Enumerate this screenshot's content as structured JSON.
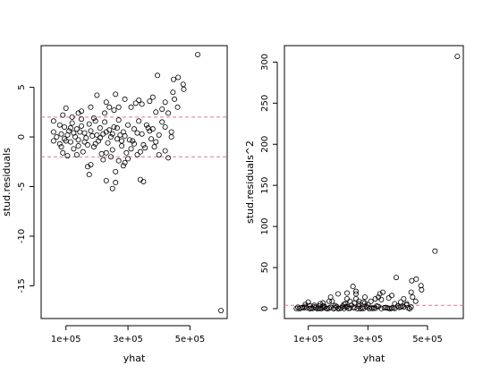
{
  "chart_data": [
    {
      "type": "scatter",
      "xlabel": "yhat",
      "ylabel": "stud.residuals",
      "xlim": [
        20000,
        620000
      ],
      "ylim": [
        -18.3,
        9.2
      ],
      "x_ticks": [
        100000,
        300000,
        500000
      ],
      "x_tick_labels": [
        "1e+05",
        "3e+05",
        "5e+05"
      ],
      "y_ticks": [
        5,
        0,
        -5,
        -10,
        -15
      ],
      "y_tick_labels": [
        "5",
        "0",
        "-5",
        "-10",
        "-15"
      ],
      "reference_lines": [
        {
          "y": 2,
          "style": "dashed",
          "color": "#e07a8a"
        },
        {
          "y": -2,
          "style": "dashed",
          "color": "#e07a8a"
        }
      ],
      "points": [
        [
          525000,
          8.3
        ],
        [
          600000,
          -17.5
        ],
        [
          478000,
          5.3
        ],
        [
          480000,
          4.8
        ],
        [
          462000,
          6.0
        ],
        [
          447000,
          5.8
        ],
        [
          395000,
          6.2
        ],
        [
          445000,
          4.5
        ],
        [
          450000,
          3.8
        ],
        [
          460000,
          3.0
        ],
        [
          420000,
          3.5
        ],
        [
          410000,
          2.8
        ],
        [
          430000,
          2.4
        ],
        [
          380000,
          4.0
        ],
        [
          390000,
          2.5
        ],
        [
          370000,
          3.6
        ],
        [
          345000,
          3.3
        ],
        [
          335000,
          3.7
        ],
        [
          325000,
          3.4
        ],
        [
          310000,
          3.0
        ],
        [
          290000,
          3.8
        ],
        [
          260000,
          4.3
        ],
        [
          270000,
          3.0
        ],
        [
          255000,
          2.7
        ],
        [
          240000,
          3.0
        ],
        [
          230000,
          3.5
        ],
        [
          225000,
          2.4
        ],
        [
          200000,
          4.2
        ],
        [
          180000,
          3.0
        ],
        [
          150000,
          2.6
        ],
        [
          140000,
          2.4
        ],
        [
          100000,
          2.9
        ],
        [
          90000,
          2.2
        ],
        [
          120000,
          2.0
        ],
        [
          410000,
          1.5
        ],
        [
          420000,
          1.0
        ],
        [
          440000,
          0.5
        ],
        [
          400000,
          0.2
        ],
        [
          390000,
          -0.5
        ],
        [
          380000,
          0.8
        ],
        [
          360000,
          1.2
        ],
        [
          350000,
          -0.8
        ],
        [
          340000,
          -1.5
        ],
        [
          330000,
          -1.8
        ],
        [
          310000,
          -1.2
        ],
        [
          300000,
          -2.2
        ],
        [
          290000,
          -2.6
        ],
        [
          285000,
          -2.9
        ],
        [
          270000,
          -2.4
        ],
        [
          260000,
          -3.5
        ],
        [
          245000,
          -2.0
        ],
        [
          230000,
          -1.6
        ],
        [
          220000,
          -2.3
        ],
        [
          180000,
          -2.8
        ],
        [
          170000,
          -3.0
        ],
        [
          175000,
          -3.8
        ],
        [
          340000,
          -4.3
        ],
        [
          350000,
          -4.5
        ],
        [
          250000,
          -5.2
        ],
        [
          260000,
          -4.6
        ],
        [
          230000,
          -4.4
        ],
        [
          420000,
          -1.4
        ],
        [
          430000,
          -2.1
        ],
        [
          400000,
          -1.8
        ],
        [
          440000,
          0.0
        ],
        [
          60000,
          0.5
        ],
        [
          70000,
          0.0
        ],
        [
          60000,
          -0.4
        ],
        [
          80000,
          1.2
        ],
        [
          60000,
          1.6
        ],
        [
          85000,
          -1.0
        ],
        [
          95000,
          1.0
        ],
        [
          105000,
          0.2
        ],
        [
          115000,
          -0.5
        ],
        [
          120000,
          1.4
        ],
        [
          125000,
          -1.2
        ],
        [
          135000,
          0.8
        ],
        [
          140000,
          -0.3
        ],
        [
          150000,
          1.1
        ],
        [
          155000,
          -1.5
        ],
        [
          160000,
          0.4
        ],
        [
          170000,
          -0.8
        ],
        [
          175000,
          1.3
        ],
        [
          185000,
          0.1
        ],
        [
          190000,
          -1.0
        ],
        [
          195000,
          1.6
        ],
        [
          205000,
          -0.4
        ],
        [
          210000,
          0.9
        ],
        [
          215000,
          -1.7
        ],
        [
          220000,
          0.3
        ],
        [
          225000,
          1.5
        ],
        [
          235000,
          -0.6
        ],
        [
          240000,
          0.7
        ],
        [
          250000,
          -1.3
        ],
        [
          255000,
          1.0
        ],
        [
          265000,
          -0.2
        ],
        [
          270000,
          1.7
        ],
        [
          280000,
          -0.9
        ],
        [
          285000,
          0.5
        ],
        [
          295000,
          -1.6
        ],
        [
          300000,
          1.2
        ],
        [
          315000,
          -0.4
        ],
        [
          320000,
          0.8
        ],
        [
          335000,
          1.6
        ],
        [
          345000,
          0.3
        ],
        [
          355000,
          -1.1
        ],
        [
          365000,
          0.9
        ],
        [
          375000,
          -0.2
        ],
        [
          85000,
          0.3
        ],
        [
          100000,
          -0.4
        ],
        [
          110000,
          0.6
        ],
        [
          130000,
          0.0
        ],
        [
          145000,
          0.5
        ],
        [
          165000,
          -0.1
        ],
        [
          200000,
          0.2
        ],
        [
          245000,
          0.0
        ],
        [
          275000,
          0.2
        ],
        [
          305000,
          -0.3
        ],
        [
          80000,
          -0.7
        ],
        [
          90000,
          -1.6
        ],
        [
          105000,
          -1.9
        ],
        [
          135000,
          -1.8
        ],
        [
          150000,
          1.8
        ],
        [
          190000,
          1.9
        ],
        [
          95000,
          -0.2
        ],
        [
          115000,
          0.9
        ],
        [
          125000,
          0.4
        ],
        [
          140000,
          -0.9
        ],
        [
          160000,
          -0.5
        ],
        [
          180000,
          0.6
        ],
        [
          195000,
          -0.7
        ],
        [
          210000,
          -0.1
        ],
        [
          230000,
          0.5
        ],
        [
          250000,
          0.3
        ],
        [
          265000,
          0.9
        ],
        [
          280000,
          -0.4
        ],
        [
          290000,
          0.1
        ],
        [
          320000,
          -0.7
        ],
        [
          330000,
          0.4
        ],
        [
          370000,
          0.6
        ],
        [
          385000,
          -1.0
        ]
      ]
    },
    {
      "type": "scatter",
      "xlabel": "yhat",
      "ylabel": "stud.residuals^2",
      "xlim": [
        20000,
        620000
      ],
      "ylim": [
        -12,
        320
      ],
      "x_ticks": [
        100000,
        300000,
        500000
      ],
      "x_tick_labels": [
        "1e+05",
        "3e+05",
        "5e+05"
      ],
      "y_ticks": [
        0,
        50,
        100,
        150,
        200,
        250,
        300
      ],
      "y_tick_labels": [
        "0",
        "50",
        "100",
        "150",
        "200",
        "250",
        "300"
      ],
      "reference_lines": [
        {
          "y": 4,
          "style": "dashed",
          "color": "#e07a8a"
        }
      ],
      "points": [
        [
          600000,
          307
        ],
        [
          525000,
          70
        ],
        [
          478000,
          28
        ],
        [
          480000,
          23
        ],
        [
          462000,
          36
        ],
        [
          447000,
          34
        ],
        [
          395000,
          38
        ],
        [
          445000,
          20
        ],
        [
          450000,
          14
        ],
        [
          460000,
          9
        ],
        [
          420000,
          12
        ],
        [
          410000,
          8
        ],
        [
          430000,
          6
        ],
        [
          380000,
          16
        ],
        [
          390000,
          6
        ],
        [
          370000,
          13
        ],
        [
          345000,
          11
        ],
        [
          335000,
          14
        ],
        [
          325000,
          12
        ],
        [
          310000,
          9
        ],
        [
          290000,
          14
        ],
        [
          260000,
          18
        ],
        [
          270000,
          9
        ],
        [
          255000,
          7
        ],
        [
          240000,
          9
        ],
        [
          230000,
          12
        ],
        [
          225000,
          6
        ],
        [
          200000,
          18
        ],
        [
          180000,
          9
        ],
        [
          150000,
          7
        ],
        [
          140000,
          6
        ],
        [
          100000,
          8
        ],
        [
          90000,
          5
        ],
        [
          120000,
          4
        ],
        [
          340000,
          18
        ],
        [
          350000,
          20
        ],
        [
          250000,
          27
        ],
        [
          260000,
          21
        ],
        [
          230000,
          19
        ],
        [
          175000,
          14
        ],
        [
          170000,
          9
        ],
        [
          285000,
          8
        ],
        [
          260000,
          12
        ],
        [
          60000,
          0.3
        ],
        [
          70000,
          0.0
        ],
        [
          80000,
          1.4
        ],
        [
          85000,
          1.0
        ],
        [
          95000,
          1.0
        ],
        [
          105000,
          0.0
        ],
        [
          115000,
          0.3
        ],
        [
          120000,
          2.0
        ],
        [
          125000,
          1.4
        ],
        [
          135000,
          0.6
        ],
        [
          140000,
          0.1
        ],
        [
          150000,
          1.2
        ],
        [
          155000,
          2.3
        ],
        [
          160000,
          0.2
        ],
        [
          170000,
          0.6
        ],
        [
          175000,
          1.7
        ],
        [
          185000,
          0.0
        ],
        [
          190000,
          1.0
        ],
        [
          195000,
          2.6
        ],
        [
          205000,
          0.2
        ],
        [
          210000,
          0.8
        ],
        [
          215000,
          2.9
        ],
        [
          220000,
          0.1
        ],
        [
          225000,
          2.3
        ],
        [
          235000,
          0.4
        ],
        [
          240000,
          0.5
        ],
        [
          250000,
          1.7
        ],
        [
          255000,
          1.0
        ],
        [
          265000,
          0.0
        ],
        [
          270000,
          2.9
        ],
        [
          280000,
          0.8
        ],
        [
          285000,
          0.3
        ],
        [
          295000,
          2.6
        ],
        [
          300000,
          1.4
        ],
        [
          315000,
          0.2
        ],
        [
          320000,
          0.6
        ],
        [
          335000,
          2.6
        ],
        [
          345000,
          0.1
        ],
        [
          355000,
          1.2
        ],
        [
          365000,
          0.8
        ],
        [
          375000,
          0.0
        ],
        [
          385000,
          1.0
        ],
        [
          400000,
          3.2
        ],
        [
          410000,
          2.3
        ],
        [
          420000,
          2.0
        ],
        [
          430000,
          4.4
        ],
        [
          440000,
          0.0
        ],
        [
          390000,
          0.3
        ],
        [
          360000,
          1.4
        ],
        [
          330000,
          3.2
        ],
        [
          310000,
          1.4
        ],
        [
          300000,
          4.8
        ],
        [
          290000,
          6.8
        ],
        [
          270000,
          5.8
        ],
        [
          245000,
          4.0
        ],
        [
          230000,
          2.6
        ],
        [
          220000,
          5.3
        ],
        [
          90000,
          2.6
        ],
        [
          105000,
          3.6
        ],
        [
          135000,
          3.2
        ],
        [
          150000,
          3.2
        ],
        [
          190000,
          3.6
        ],
        [
          65000,
          1.8
        ],
        [
          75000,
          0.8
        ],
        [
          110000,
          0.4
        ],
        [
          130000,
          0.0
        ],
        [
          145000,
          0.3
        ],
        [
          165000,
          0.0
        ],
        [
          200000,
          0.0
        ],
        [
          275000,
          0.0
        ],
        [
          305000,
          0.1
        ],
        [
          325000,
          0.5
        ],
        [
          370000,
          0.4
        ],
        [
          380000,
          0.6
        ],
        [
          405000,
          1.5
        ],
        [
          415000,
          3.0
        ],
        [
          435000,
          1.0
        ],
        [
          445000,
          2.0
        ]
      ]
    }
  ]
}
